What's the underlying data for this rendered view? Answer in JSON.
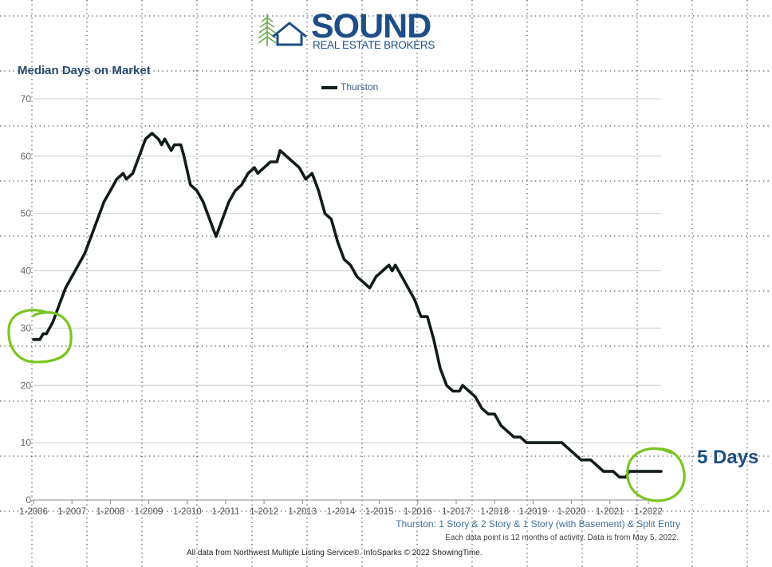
{
  "logo": {
    "brand": "SOUND",
    "tagline": "REAL ESTATE BROKERS"
  },
  "annotation": {
    "end_label": "5 Days",
    "highlight_color": "#7ac520"
  },
  "footer": {
    "series_description": "Thurston: 1 Story & 2 Story & 1 Story (with Basement) & Split Entry",
    "note": "Each data point is 12 months of activity. Data is from May 5, 2022.",
    "source": "All data from Northwest Multiple Listing Service®. InfoSparks © 2022 ShowingTime."
  },
  "colors": {
    "line": "#111c18",
    "title": "#2b4a6f",
    "grid": "#cccccc"
  },
  "chart_data": {
    "type": "line",
    "title": "Median Days on Market",
    "xlabel": "",
    "ylabel": "",
    "ylim": [
      0,
      70
    ],
    "yticks": [
      0,
      10,
      20,
      30,
      40,
      50,
      60,
      70
    ],
    "xticks": [
      "1-2006",
      "1-2007",
      "1-2008",
      "1-2009",
      "1-2010",
      "1-2011",
      "1-2012",
      "1-2013",
      "1-2014",
      "1-2015",
      "1-2016",
      "1-2017",
      "1-2018",
      "1-2019",
      "1-2020",
      "1-2021",
      "1-2022"
    ],
    "xlim": [
      "1-2006",
      "5-2022"
    ],
    "grid": true,
    "legend_position": "top-center",
    "series": [
      {
        "name": "Thurston",
        "points": [
          [
            "1-2006",
            28
          ],
          [
            "3-2006",
            28
          ],
          [
            "4-2006",
            29
          ],
          [
            "5-2006",
            29
          ],
          [
            "7-2006",
            31
          ],
          [
            "9-2006",
            34
          ],
          [
            "11-2006",
            37
          ],
          [
            "1-2007",
            39
          ],
          [
            "3-2007",
            41
          ],
          [
            "5-2007",
            43
          ],
          [
            "7-2007",
            46
          ],
          [
            "9-2007",
            49
          ],
          [
            "11-2007",
            52
          ],
          [
            "1-2008",
            54
          ],
          [
            "3-2008",
            56
          ],
          [
            "5-2008",
            57
          ],
          [
            "6-2008",
            56
          ],
          [
            "8-2008",
            57
          ],
          [
            "10-2008",
            60
          ],
          [
            "12-2008",
            63
          ],
          [
            "2-2009",
            64
          ],
          [
            "4-2009",
            63
          ],
          [
            "5-2009",
            62
          ],
          [
            "6-2009",
            63
          ],
          [
            "8-2009",
            61
          ],
          [
            "9-2009",
            62
          ],
          [
            "11-2009",
            62
          ],
          [
            "12-2009",
            60
          ],
          [
            "2-2010",
            55
          ],
          [
            "4-2010",
            54
          ],
          [
            "6-2010",
            52
          ],
          [
            "8-2010",
            49
          ],
          [
            "10-2010",
            46
          ],
          [
            "12-2010",
            49
          ],
          [
            "2-2011",
            52
          ],
          [
            "4-2011",
            54
          ],
          [
            "6-2011",
            55
          ],
          [
            "8-2011",
            57
          ],
          [
            "10-2011",
            58
          ],
          [
            "11-2011",
            57
          ],
          [
            "1-2012",
            58
          ],
          [
            "3-2012",
            59
          ],
          [
            "5-2012",
            59
          ],
          [
            "6-2012",
            61
          ],
          [
            "8-2012",
            60
          ],
          [
            "10-2012",
            59
          ],
          [
            "12-2012",
            58
          ],
          [
            "2-2013",
            56
          ],
          [
            "4-2013",
            57
          ],
          [
            "6-2013",
            54
          ],
          [
            "8-2013",
            50
          ],
          [
            "10-2013",
            49
          ],
          [
            "12-2013",
            45
          ],
          [
            "2-2014",
            42
          ],
          [
            "4-2014",
            41
          ],
          [
            "6-2014",
            39
          ],
          [
            "8-2014",
            38
          ],
          [
            "10-2014",
            37
          ],
          [
            "12-2014",
            39
          ],
          [
            "2-2015",
            40
          ],
          [
            "4-2015",
            41
          ],
          [
            "5-2015",
            40
          ],
          [
            "6-2015",
            41
          ],
          [
            "8-2015",
            39
          ],
          [
            "10-2015",
            37
          ],
          [
            "12-2015",
            35
          ],
          [
            "2-2016",
            32
          ],
          [
            "4-2016",
            32
          ],
          [
            "6-2016",
            28
          ],
          [
            "8-2016",
            23
          ],
          [
            "10-2016",
            20
          ],
          [
            "12-2016",
            19
          ],
          [
            "2-2017",
            19
          ],
          [
            "3-2017",
            20
          ],
          [
            "5-2017",
            19
          ],
          [
            "7-2017",
            18
          ],
          [
            "9-2017",
            16
          ],
          [
            "11-2017",
            15
          ],
          [
            "1-2018",
            15
          ],
          [
            "3-2018",
            13
          ],
          [
            "5-2018",
            12
          ],
          [
            "7-2018",
            11
          ],
          [
            "9-2018",
            11
          ],
          [
            "11-2018",
            10
          ],
          [
            "1-2019",
            10
          ],
          [
            "4-2019",
            10
          ],
          [
            "7-2019",
            10
          ],
          [
            "10-2019",
            10
          ],
          [
            "12-2019",
            9
          ],
          [
            "2-2020",
            8
          ],
          [
            "4-2020",
            7
          ],
          [
            "7-2020",
            7
          ],
          [
            "9-2020",
            6
          ],
          [
            "11-2020",
            5
          ],
          [
            "2-2021",
            5
          ],
          [
            "4-2021",
            4
          ],
          [
            "6-2021",
            4
          ],
          [
            "7-2021",
            5
          ],
          [
            "10-2021",
            5
          ],
          [
            "1-2022",
            5
          ],
          [
            "5-2022",
            5
          ]
        ]
      }
    ]
  }
}
